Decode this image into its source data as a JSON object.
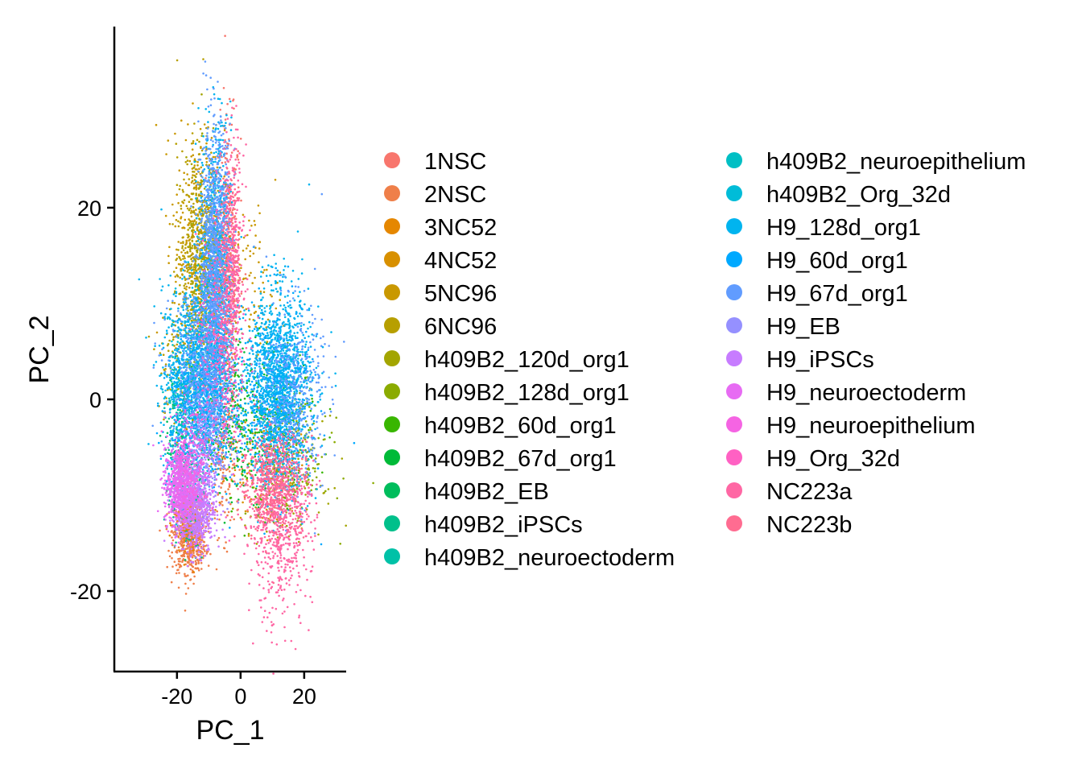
{
  "chart_data": {
    "type": "scatter",
    "title": "",
    "xlabel": "PC_1",
    "ylabel": "PC_2",
    "xlim": [
      -39.7,
      33.2
    ],
    "ylim": [
      -28.4,
      38.9
    ],
    "xticks": [
      -20,
      0,
      20
    ],
    "yticks": [
      -20,
      0,
      20
    ],
    "grid": false,
    "legend_position": "right",
    "legend_columns": 2,
    "series": [
      {
        "name": "1NSC",
        "color": "#F8766D",
        "clusters": [
          [
            -4,
            15,
            2,
            7,
            400
          ]
        ]
      },
      {
        "name": "2NSC",
        "color": "#EF7F49",
        "clusters": [
          [
            -16,
            -14,
            2.5,
            2,
            700
          ],
          [
            -5,
            -6,
            2,
            4,
            150
          ]
        ]
      },
      {
        "name": "3NC52",
        "color": "#E58700",
        "clusters": [
          [
            -17,
            -13,
            2,
            2,
            100
          ]
        ]
      },
      {
        "name": "4NC52",
        "color": "#D89000",
        "clusters": [
          [
            8,
            -8,
            6,
            3,
            120
          ]
        ]
      },
      {
        "name": "5NC96",
        "color": "#C99800",
        "clusters": [
          [
            -13,
            16,
            4,
            6,
            500
          ],
          [
            3,
            12,
            5,
            4,
            100
          ]
        ]
      },
      {
        "name": "6NC96",
        "color": "#B79F00",
        "clusters": [
          [
            -13,
            14,
            3.5,
            6,
            500
          ],
          [
            -20,
            3,
            3,
            4,
            100
          ]
        ]
      },
      {
        "name": "h409B2_120d_org1",
        "color": "#A3A500",
        "clusters": [
          [
            -11,
            12,
            3,
            6,
            300
          ],
          [
            14,
            -8,
            6,
            3,
            150
          ]
        ]
      },
      {
        "name": "h409B2_128d_org1",
        "color": "#8BAB00",
        "clusters": [
          [
            16,
            -6,
            6,
            3,
            200
          ]
        ]
      },
      {
        "name": "h409B2_60d_org1",
        "color": "#39B600",
        "clusters": [
          [
            5,
            -3,
            9,
            4,
            250
          ]
        ]
      },
      {
        "name": "h409B2_67d_org1",
        "color": "#00BA38",
        "clusters": [
          [
            0,
            -2,
            8,
            4,
            250
          ]
        ]
      },
      {
        "name": "h409B2_EB",
        "color": "#00BD5C",
        "clusters": [
          [
            -18,
            -5,
            3,
            4,
            120
          ]
        ]
      },
      {
        "name": "h409B2_iPSCs",
        "color": "#00C08B",
        "clusters": [
          [
            -17,
            -10,
            3,
            3,
            100
          ]
        ]
      },
      {
        "name": "h409B2_neuroectoderm",
        "color": "#00C1A7",
        "clusters": [
          [
            -20,
            -3,
            2,
            4,
            100
          ]
        ]
      },
      {
        "name": "h409B2_neuroepithelium",
        "color": "#00BFC4",
        "clusters": [
          [
            -19,
            0,
            2.5,
            3,
            100
          ]
        ]
      },
      {
        "name": "h409B2_Org_32d",
        "color": "#00BCD8",
        "clusters": [
          [
            -12,
            3,
            4,
            4,
            200
          ]
        ]
      },
      {
        "name": "H9_128d_org1",
        "color": "#00B4EF",
        "clusters": [
          [
            12,
            1,
            5,
            5,
            1600
          ],
          [
            -8,
            12,
            2.5,
            8,
            900
          ],
          [
            -15,
            2,
            5,
            5,
            900
          ]
        ]
      },
      {
        "name": "H9_60d_org1",
        "color": "#00A9FF",
        "clusters": [
          [
            -12,
            0,
            5,
            4,
            500
          ],
          [
            10,
            0,
            6,
            5,
            400
          ]
        ]
      },
      {
        "name": "H9_67d_org1",
        "color": "#619CFF",
        "clusters": [
          [
            -8,
            14,
            2.5,
            7,
            1200
          ],
          [
            -12,
            2,
            5,
            5,
            700
          ],
          [
            16,
            0,
            5,
            5,
            500
          ]
        ]
      },
      {
        "name": "H9_EB",
        "color": "#9590FF",
        "clusters": [
          [
            -10,
            -4,
            4,
            3,
            250
          ]
        ]
      },
      {
        "name": "H9_iPSCs",
        "color": "#C77CFF",
        "clusters": [
          [
            -14,
            -11,
            3,
            2.5,
            800
          ]
        ]
      },
      {
        "name": "H9_neuroectoderm",
        "color": "#E76BF3",
        "clusters": [
          [
            -19,
            -9,
            2.5,
            2,
            700
          ]
        ]
      },
      {
        "name": "H9_neuroepithelium",
        "color": "#F564E3",
        "clusters": [
          [
            -16,
            -6,
            3,
            3,
            200
          ]
        ]
      },
      {
        "name": "H9_Org_32d",
        "color": "#FF61C3",
        "clusters": [
          [
            -6,
            4,
            4,
            6,
            300
          ]
        ]
      },
      {
        "name": "NC223a",
        "color": "#FF67A4",
        "clusters": [
          [
            -3,
            14,
            2,
            6,
            500
          ],
          [
            12,
            -10,
            5,
            3,
            600
          ],
          [
            12,
            -17,
            5,
            3.5,
            250
          ]
        ]
      },
      {
        "name": "NC223b",
        "color": "#FF6C91",
        "clusters": [
          [
            10,
            -9,
            5,
            3,
            300
          ]
        ]
      }
    ]
  }
}
